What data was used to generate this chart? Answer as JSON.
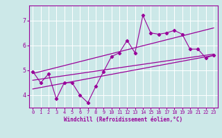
{
  "xlabel": "Windchill (Refroidissement éolien,°C)",
  "bg_color": "#cce8e8",
  "line_color": "#990099",
  "grid_color": "#ffffff",
  "xlim": [
    -0.5,
    23.5
  ],
  "ylim": [
    3.5,
    7.6
  ],
  "yticks": [
    4,
    5,
    6,
    7
  ],
  "xticks": [
    0,
    1,
    2,
    3,
    4,
    5,
    6,
    7,
    8,
    9,
    10,
    11,
    12,
    13,
    14,
    15,
    16,
    17,
    18,
    19,
    20,
    21,
    22,
    23
  ],
  "zigzag_x": [
    0,
    1,
    2,
    3,
    4,
    5,
    6,
    7,
    8,
    9,
    10,
    11,
    12,
    13,
    14,
    15,
    16,
    17,
    18,
    19,
    20,
    21,
    22,
    23
  ],
  "zigzag_y": [
    4.95,
    4.5,
    4.85,
    3.85,
    4.5,
    4.5,
    4.0,
    3.7,
    4.35,
    4.95,
    5.55,
    5.7,
    6.2,
    5.7,
    7.2,
    6.5,
    6.45,
    6.5,
    6.6,
    6.45,
    5.85,
    5.85,
    5.5,
    5.6
  ],
  "trend1_x": [
    0,
    23
  ],
  "trend1_y": [
    4.87,
    6.7
  ],
  "trend2_x": [
    0,
    23
  ],
  "trend2_y": [
    4.6,
    5.65
  ],
  "trend3_x": [
    0,
    23
  ],
  "trend3_y": [
    4.25,
    5.6
  ]
}
